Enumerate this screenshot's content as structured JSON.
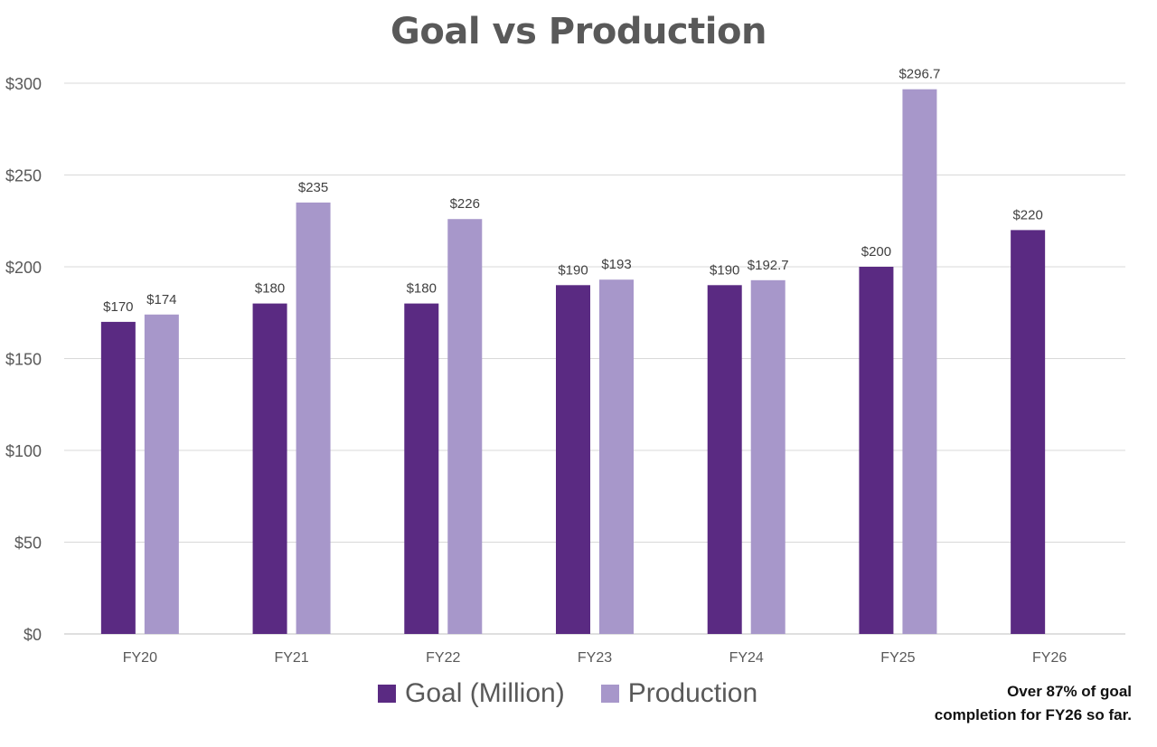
{
  "chart_data": {
    "type": "bar",
    "title": "Goal vs Production",
    "categories": [
      "FY20",
      "FY21",
      "FY22",
      "FY23",
      "FY24",
      "FY25",
      "FY26"
    ],
    "series": [
      {
        "name": "Goal (Million)",
        "color": "#5A2A82",
        "values": [
          170,
          180,
          180,
          190,
          190,
          200,
          220
        ],
        "labels": [
          "$170",
          "$180",
          "$180",
          "$190",
          "$190",
          "$200",
          "$220"
        ]
      },
      {
        "name": "Production",
        "color": "#A797CA",
        "values": [
          174,
          235,
          226,
          193,
          192.7,
          296.7,
          null
        ],
        "labels": [
          "$174",
          "$235",
          "$226",
          "$193",
          "$192.7",
          "$296.7",
          ""
        ]
      }
    ],
    "ylim": [
      0,
      300
    ],
    "yticks": [
      0,
      50,
      100,
      150,
      200,
      250,
      300
    ],
    "ytick_labels": [
      "$0",
      "$50",
      "$100",
      "$150",
      "$200",
      "$250",
      "$300"
    ],
    "grid": true,
    "legend": "bottom",
    "xlabel": "",
    "ylabel": ""
  },
  "annotation": {
    "line1": "Over 87% of goal",
    "line2": "completion for FY26 so far."
  }
}
